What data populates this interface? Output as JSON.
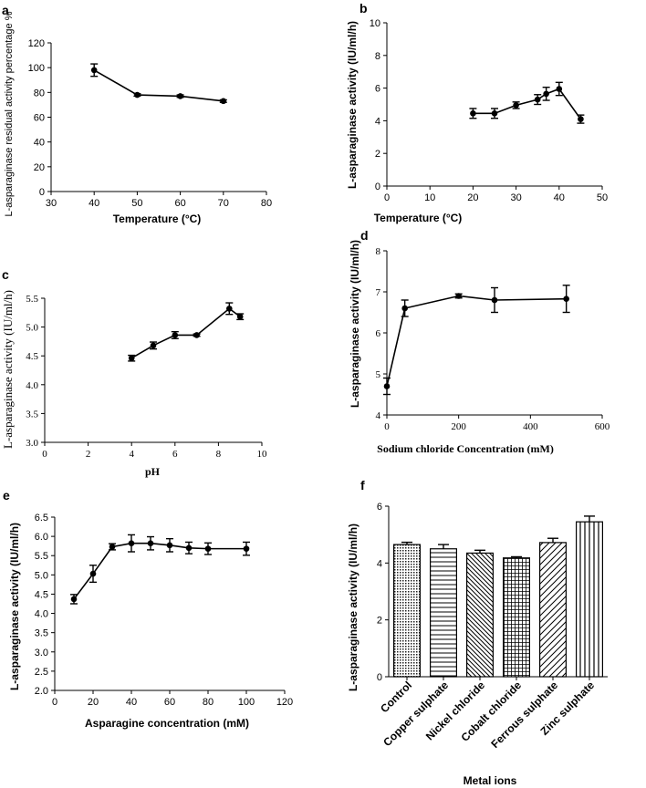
{
  "figure": {
    "panels": [
      {
        "letter": "a"
      },
      {
        "letter": "b"
      },
      {
        "letter": "c"
      },
      {
        "letter": "d"
      },
      {
        "letter": "e"
      },
      {
        "letter": "f"
      }
    ]
  },
  "chart_data": [
    {
      "panel": "a",
      "type": "line",
      "xlabel": "Temperature (°C)",
      "ylabel": "L-asparaginase residual activity percentage %",
      "xlim": [
        30,
        80
      ],
      "ylim": [
        0,
        120
      ],
      "xticks": [
        30,
        40,
        50,
        60,
        70,
        80
      ],
      "yticks": [
        0,
        20,
        40,
        60,
        80,
        100,
        120
      ],
      "x": [
        40,
        50,
        60,
        70
      ],
      "y": [
        98,
        78,
        77,
        73
      ],
      "err": [
        5,
        1,
        1,
        1
      ]
    },
    {
      "panel": "b",
      "type": "line",
      "xlabel": "Temperature (°C)",
      "ylabel": "L-asparaginase activity (IU/ml/h)",
      "xlim": [
        0,
        50
      ],
      "ylim": [
        0,
        10
      ],
      "xticks": [
        0,
        10,
        20,
        30,
        40,
        50
      ],
      "yticks": [
        0,
        2,
        4,
        6,
        8,
        10
      ],
      "x": [
        20,
        25,
        30,
        35,
        37,
        40,
        45
      ],
      "y": [
        4.45,
        4.45,
        4.95,
        5.3,
        5.65,
        5.95,
        4.1
      ],
      "err": [
        0.3,
        0.3,
        0.2,
        0.3,
        0.4,
        0.4,
        0.25
      ]
    },
    {
      "panel": "c",
      "type": "line",
      "xlabel": "pH",
      "ylabel": "L-asparaginase  activity (IU/ml/h)",
      "xlim": [
        0,
        10
      ],
      "ylim": [
        3.0,
        5.5
      ],
      "xticks": [
        0,
        2,
        4,
        6,
        8,
        10
      ],
      "yticks": [
        "3.0",
        "3.5",
        "4.0",
        "4.5",
        "5.0",
        "5.5"
      ],
      "x": [
        4,
        5,
        6,
        7,
        8.5,
        9
      ],
      "y": [
        4.46,
        4.68,
        4.86,
        4.86,
        5.32,
        5.18
      ],
      "err": [
        0.05,
        0.06,
        0.06,
        0.02,
        0.1,
        0.05
      ]
    },
    {
      "panel": "d",
      "type": "line",
      "xlabel": "Sodium chloride Concentration (mM)",
      "ylabel": "L-asparaginase activity (IU/ml/h)",
      "xlim": [
        0,
        600
      ],
      "ylim": [
        4,
        8
      ],
      "xticks": [
        0,
        200,
        400,
        600
      ],
      "yticks": [
        4,
        5,
        6,
        7,
        8
      ],
      "x": [
        0,
        50,
        200,
        300,
        500
      ],
      "y": [
        4.7,
        6.6,
        6.9,
        6.8,
        6.83
      ],
      "err": [
        0.2,
        0.2,
        0.05,
        0.3,
        0.33
      ]
    },
    {
      "panel": "e",
      "type": "line",
      "xlabel": "Asparagine concentration (mM)",
      "ylabel": "L-asparaginase activity (IU/ml/h)",
      "xlim": [
        0,
        120
      ],
      "ylim": [
        2.0,
        6.5
      ],
      "xticks": [
        0,
        20,
        40,
        60,
        80,
        100,
        120
      ],
      "yticks": [
        "2.0",
        "2.5",
        "3.0",
        "3.5",
        "4.0",
        "4.5",
        "5.0",
        "5.5",
        "6.0",
        "6.5"
      ],
      "x": [
        10,
        20,
        30,
        40,
        50,
        60,
        70,
        80,
        100
      ],
      "y": [
        4.37,
        5.03,
        5.73,
        5.82,
        5.82,
        5.77,
        5.7,
        5.68,
        5.68
      ],
      "err": [
        0.12,
        0.22,
        0.08,
        0.22,
        0.17,
        0.17,
        0.15,
        0.15,
        0.17
      ]
    },
    {
      "panel": "f",
      "type": "bar",
      "xlabel": "Metal ions",
      "ylabel": "L-asparaginase activity (IU/ml/h)",
      "ylim": [
        0,
        6
      ],
      "yticks": [
        0,
        2,
        4,
        6
      ],
      "categories": [
        "Control",
        "Copper sulphate",
        "Nickel chloride",
        "Cobalt chloride",
        "Ferrous sulphate",
        "Zinc sulphate"
      ],
      "values": [
        4.65,
        4.5,
        4.35,
        4.18,
        4.72,
        5.45
      ],
      "err": [
        0.08,
        0.15,
        0.1,
        0.04,
        0.15,
        0.2
      ],
      "patterns": [
        "dots",
        "hlines",
        "diag-down",
        "grid",
        "diag-up",
        "vlines"
      ]
    }
  ]
}
